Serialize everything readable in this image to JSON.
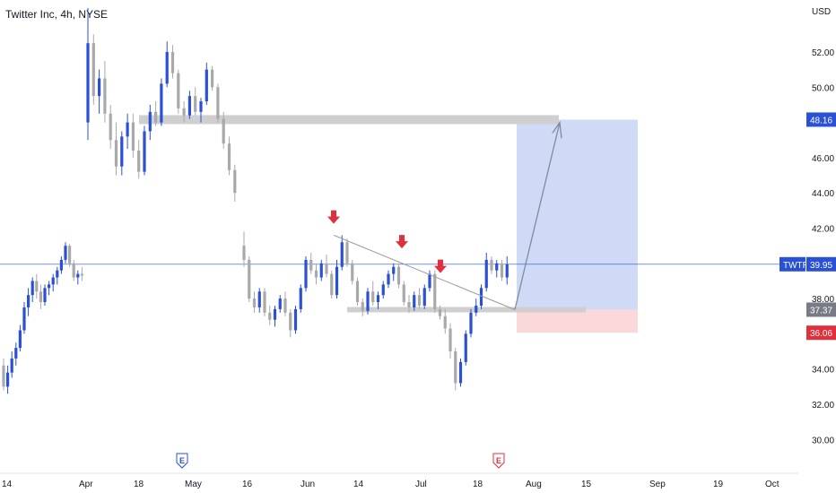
{
  "header": {
    "title": "Twitter Inc, 4h, NYSE"
  },
  "chart_data": {
    "type": "candlestick",
    "symbol": "TWTR",
    "currency_label": "USD",
    "colors": {
      "up": "#2a50d4",
      "down": "#a9a9a9",
      "last_price_line": "#2a50d4",
      "target_zone": "#c7d5f5",
      "stop_zone": "#fbd9db",
      "level_band": "#cfcfcf",
      "arrow": "#e0303c",
      "trendline": "#9a9a9a"
    },
    "y_axis": {
      "ylim": [
        28.5,
        55
      ],
      "ticks": [
        "52.00",
        "50.00",
        "48.00",
        "46.00",
        "44.00",
        "42.00",
        "40.00",
        "38.00",
        "36.00",
        "34.00",
        "32.00",
        "30.00"
      ]
    },
    "x_axis": {
      "ticks": [
        "14",
        "Apr",
        "18",
        "May",
        "16",
        "Jun",
        "14",
        "Jul",
        "18",
        "Aug",
        "15",
        "Sep",
        "19",
        "Oct"
      ],
      "bars_per_label_estimate": 1
    },
    "price_labels": [
      {
        "name": "target",
        "value": "48.16",
        "color": "#2a50d4",
        "text_color": "#ffffff"
      },
      {
        "name": "last",
        "value": "39.95",
        "prefix": "TWTR",
        "color": "#2a50d4",
        "text_color": "#ffffff"
      },
      {
        "name": "entry",
        "value": "37.37",
        "color": "#787b86",
        "text_color": "#ffffff"
      },
      {
        "name": "stop",
        "value": "36.06",
        "color": "#e0303c",
        "text_color": "#ffffff"
      }
    ],
    "earnings_markers": [
      {
        "label": "E",
        "type": "past"
      },
      {
        "label": "E",
        "type": "upcoming"
      }
    ],
    "candles": [
      [
        34.2,
        34.6,
        32.8,
        33.0
      ],
      [
        33.0,
        34.2,
        32.6,
        33.8
      ],
      [
        33.8,
        35.0,
        33.5,
        34.6
      ],
      [
        34.6,
        35.5,
        34.2,
        35.2
      ],
      [
        35.2,
        36.5,
        35.0,
        36.2
      ],
      [
        36.2,
        37.8,
        36.0,
        37.5
      ],
      [
        37.5,
        38.6,
        37.0,
        38.2
      ],
      [
        38.2,
        39.2,
        37.8,
        39.0
      ],
      [
        39.0,
        39.4,
        38.0,
        38.4
      ],
      [
        38.4,
        38.8,
        37.4,
        37.8
      ],
      [
        37.8,
        38.8,
        37.6,
        38.6
      ],
      [
        38.6,
        39.0,
        38.2,
        38.8
      ],
      [
        38.8,
        39.4,
        38.4,
        39.2
      ],
      [
        39.2,
        39.8,
        38.8,
        39.6
      ],
      [
        39.6,
        40.4,
        39.4,
        40.2
      ],
      [
        40.2,
        41.2,
        40.0,
        41.0
      ],
      [
        41.0,
        41.1,
        39.8,
        40.0
      ],
      [
        40.0,
        40.2,
        39.0,
        39.2
      ],
      [
        39.2,
        39.6,
        38.8,
        39.4
      ],
      [
        39.4,
        39.8,
        39.0,
        39.3
      ],
      [
        48.0,
        54.5,
        47.0,
        52.5
      ],
      [
        52.5,
        53.0,
        49.0,
        49.5
      ],
      [
        49.5,
        51.0,
        48.5,
        50.5
      ],
      [
        50.5,
        51.5,
        48.0,
        48.5
      ],
      [
        48.5,
        49.0,
        46.5,
        47.0
      ],
      [
        47.0,
        48.0,
        45.0,
        45.5
      ],
      [
        45.5,
        47.5,
        45.0,
        47.2
      ],
      [
        47.2,
        48.5,
        46.5,
        48.0
      ],
      [
        48.0,
        48.5,
        46.0,
        46.4
      ],
      [
        46.4,
        47.0,
        44.8,
        45.2
      ],
      [
        45.2,
        47.8,
        45.0,
        47.5
      ],
      [
        47.5,
        49.0,
        47.0,
        48.6
      ],
      [
        48.6,
        49.2,
        47.8,
        48.0
      ],
      [
        48.0,
        50.5,
        47.8,
        50.2
      ],
      [
        50.2,
        52.6,
        50.0,
        52.0
      ],
      [
        52.0,
        52.4,
        50.5,
        50.8
      ],
      [
        50.8,
        51.0,
        48.5,
        48.8
      ],
      [
        48.8,
        49.2,
        48.0,
        48.4
      ],
      [
        48.4,
        49.8,
        48.2,
        49.5
      ],
      [
        49.5,
        50.0,
        48.4,
        48.6
      ],
      [
        48.6,
        49.4,
        48.0,
        49.2
      ],
      [
        49.2,
        51.4,
        49.0,
        51.0
      ],
      [
        51.0,
        51.2,
        49.8,
        50.0
      ],
      [
        50.0,
        50.2,
        48.0,
        48.2
      ],
      [
        48.2,
        48.6,
        46.5,
        46.8
      ],
      [
        46.8,
        47.2,
        45.0,
        45.3
      ],
      [
        45.3,
        45.6,
        43.5,
        44.0
      ],
      [
        41.0,
        41.8,
        39.8,
        40.2
      ],
      [
        40.2,
        40.4,
        37.8,
        38.0
      ],
      [
        38.0,
        38.4,
        37.2,
        37.5
      ],
      [
        37.5,
        38.6,
        37.2,
        38.4
      ],
      [
        38.4,
        38.6,
        37.0,
        37.2
      ],
      [
        37.2,
        37.6,
        36.5,
        36.8
      ],
      [
        36.8,
        37.6,
        36.4,
        37.4
      ],
      [
        37.4,
        38.2,
        37.2,
        38.0
      ],
      [
        38.0,
        38.4,
        37.0,
        37.2
      ],
      [
        37.2,
        37.4,
        35.8,
        36.2
      ],
      [
        36.2,
        37.6,
        36.0,
        37.4
      ],
      [
        37.4,
        38.8,
        37.2,
        38.6
      ],
      [
        38.6,
        40.4,
        38.4,
        40.2
      ],
      [
        40.2,
        40.6,
        39.4,
        39.6
      ],
      [
        39.6,
        40.0,
        38.8,
        39.2
      ],
      [
        39.2,
        40.2,
        39.0,
        40.0
      ],
      [
        40.0,
        40.5,
        39.2,
        39.4
      ],
      [
        39.4,
        39.6,
        38.0,
        38.2
      ],
      [
        38.2,
        40.2,
        38.0,
        39.8
      ],
      [
        39.8,
        41.6,
        39.6,
        41.2
      ],
      [
        41.2,
        41.4,
        39.8,
        40.0
      ],
      [
        40.0,
        40.2,
        38.8,
        39.0
      ],
      [
        39.0,
        39.2,
        37.6,
        37.8
      ],
      [
        37.8,
        38.0,
        37.0,
        37.3
      ],
      [
        37.3,
        38.6,
        37.1,
        38.4
      ],
      [
        38.4,
        39.0,
        37.6,
        37.8
      ],
      [
        37.8,
        38.4,
        37.4,
        38.2
      ],
      [
        38.2,
        39.0,
        38.0,
        38.8
      ],
      [
        38.8,
        39.6,
        38.6,
        39.4
      ],
      [
        39.4,
        40.0,
        39.0,
        39.8
      ],
      [
        39.8,
        40.0,
        38.6,
        38.8
      ],
      [
        38.8,
        39.0,
        37.6,
        37.8
      ],
      [
        37.8,
        38.2,
        37.2,
        37.5
      ],
      [
        37.5,
        38.4,
        37.3,
        38.2
      ],
      [
        38.2,
        38.6,
        37.4,
        37.6
      ],
      [
        37.6,
        38.8,
        37.4,
        38.6
      ],
      [
        38.6,
        39.6,
        38.4,
        39.4
      ],
      [
        39.4,
        39.6,
        37.2,
        37.4
      ],
      [
        37.4,
        37.6,
        36.8,
        37.0
      ],
      [
        37.0,
        37.4,
        36.0,
        36.3
      ],
      [
        36.3,
        36.6,
        34.6,
        35.0
      ],
      [
        35.0,
        35.2,
        32.8,
        33.2
      ],
      [
        33.2,
        34.6,
        33.0,
        34.4
      ],
      [
        34.4,
        36.2,
        34.2,
        36.0
      ],
      [
        36.0,
        37.4,
        35.8,
        37.2
      ],
      [
        37.2,
        38.0,
        37.0,
        37.6
      ],
      [
        37.6,
        38.8,
        37.4,
        38.6
      ],
      [
        38.6,
        40.6,
        38.4,
        40.2
      ],
      [
        40.2,
        40.4,
        39.4,
        39.6
      ],
      [
        39.6,
        40.2,
        39.2,
        40.0
      ],
      [
        40.0,
        40.2,
        39.0,
        39.2
      ],
      [
        39.2,
        40.4,
        38.8,
        39.95
      ]
    ],
    "candles_format": "[open, high, low, close]",
    "levels": [
      {
        "name": "resistance-band",
        "value": 48.16
      },
      {
        "name": "support-band",
        "value": 37.37
      }
    ],
    "position": {
      "entry": 37.37,
      "target": 48.16,
      "stop": 36.06
    }
  }
}
